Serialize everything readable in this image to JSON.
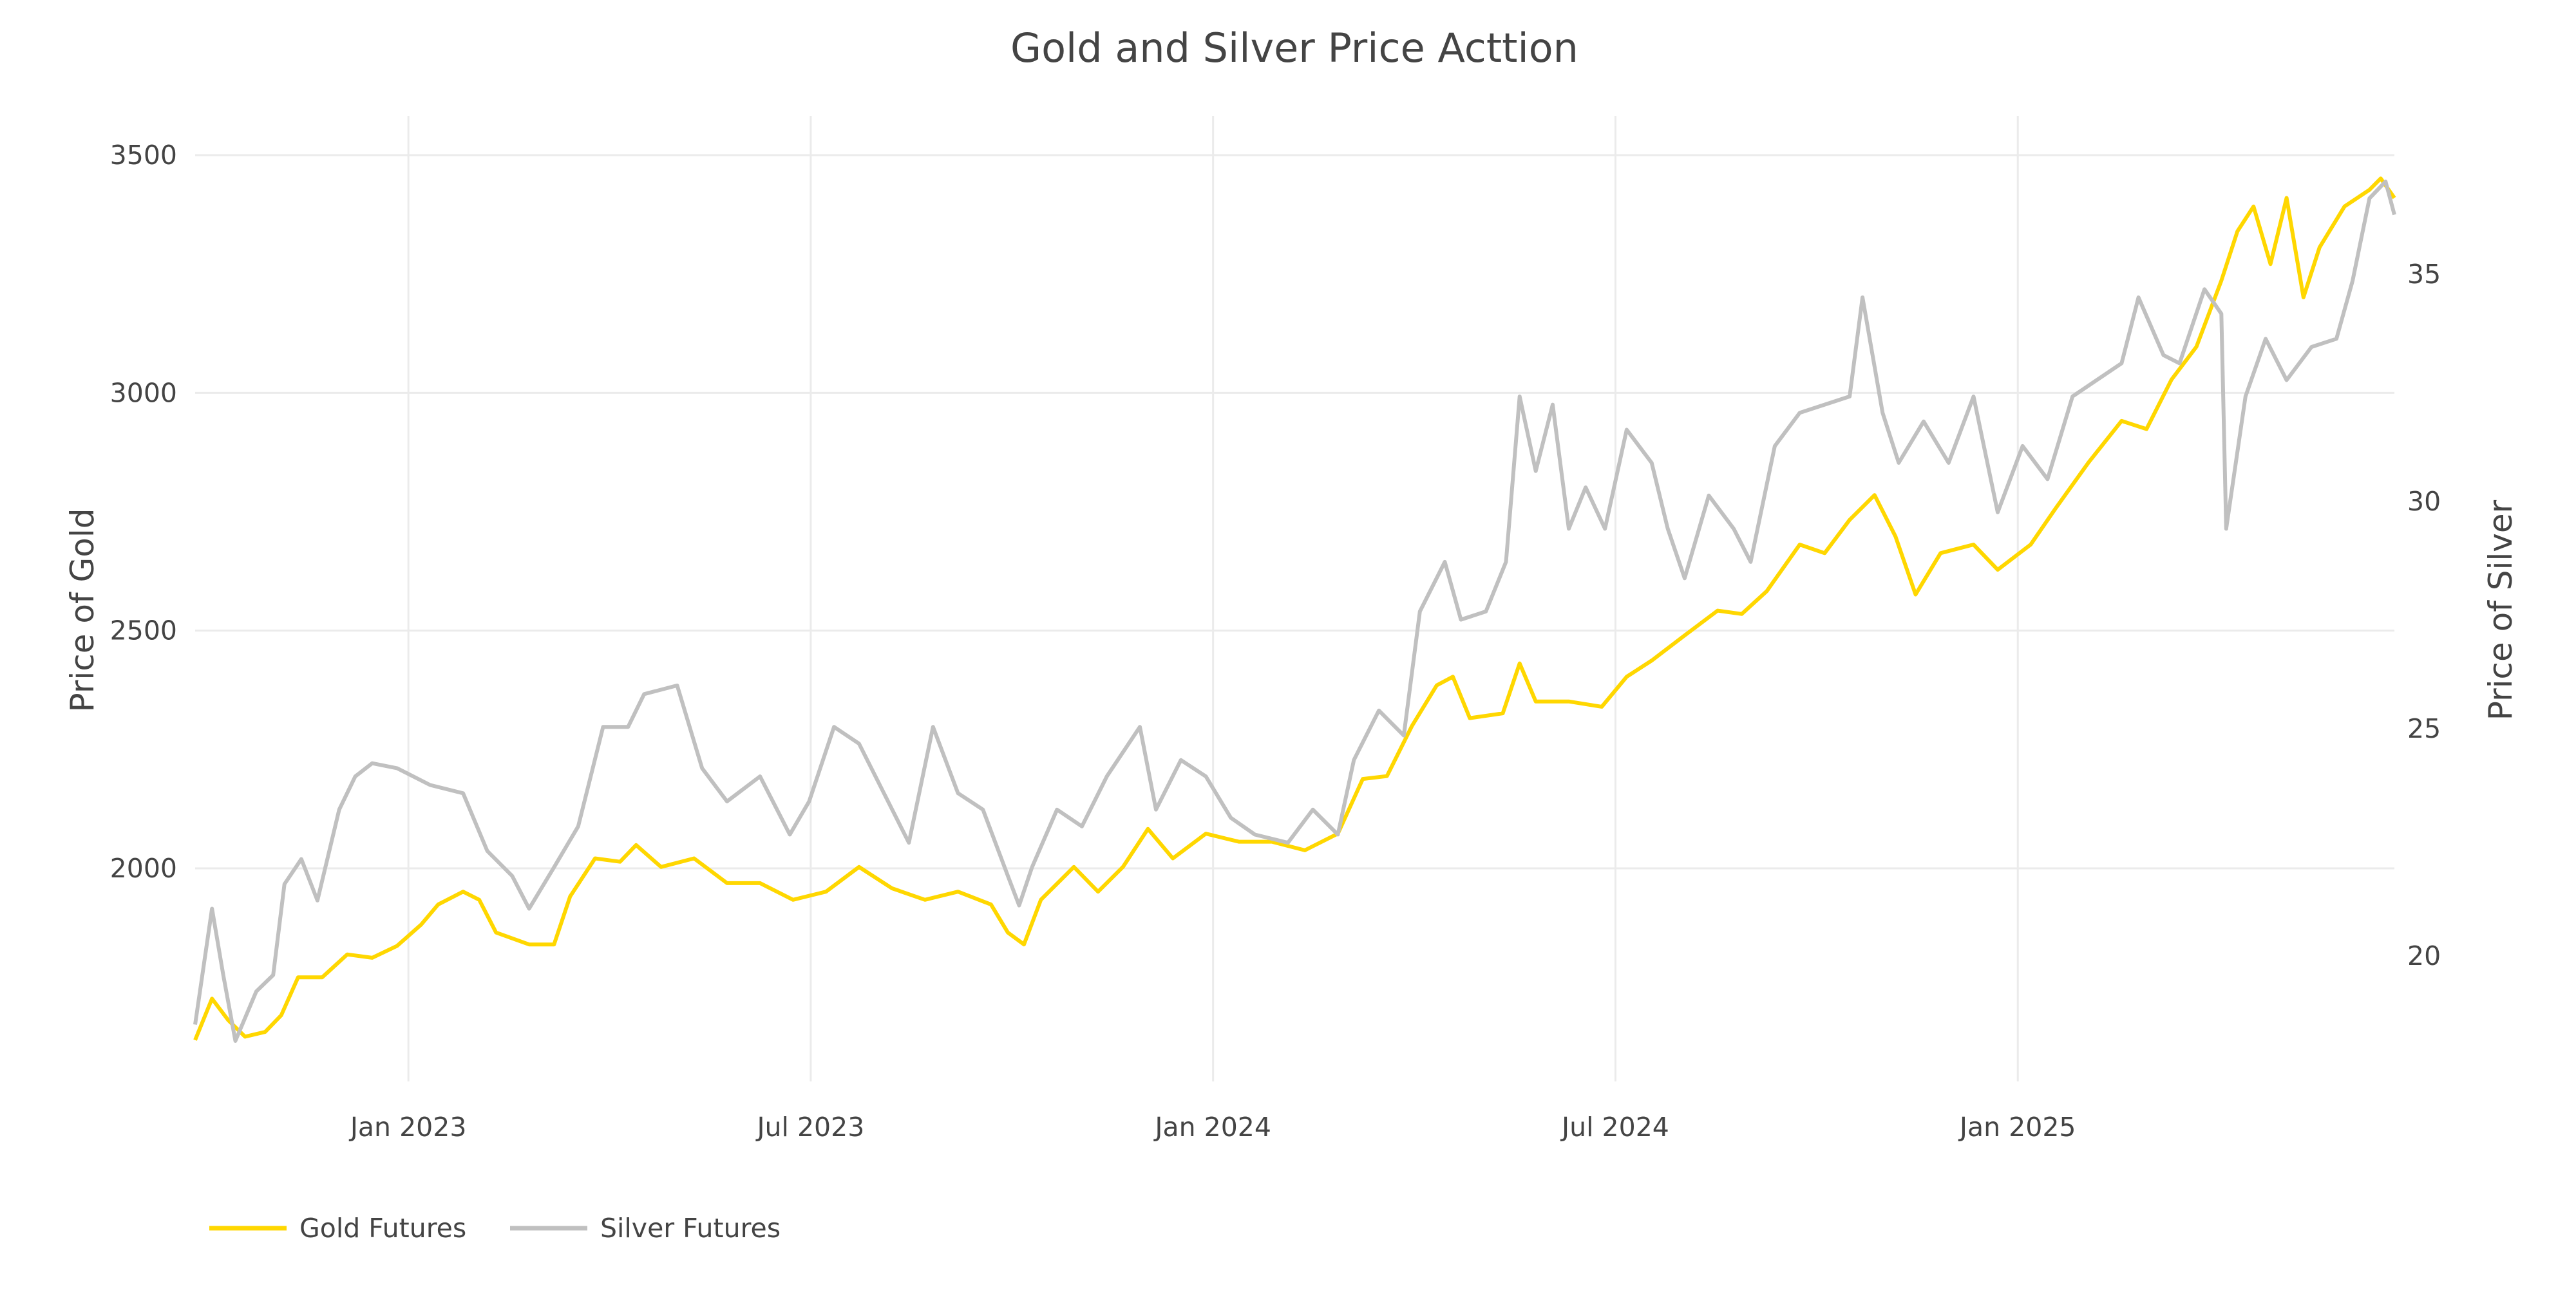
{
  "chart_data": {
    "type": "line",
    "title": "Gold and Silver Price Acttion",
    "x_unit": "decimal year",
    "xlim": [
      2022.735,
      2025.468
    ],
    "x_ticks": [
      {
        "value": 2023.0,
        "label": "Jan 2023"
      },
      {
        "value": 2023.5,
        "label": "Jul 2023"
      },
      {
        "value": 2024.0,
        "label": "Jan 2024"
      },
      {
        "value": 2024.5,
        "label": "Jul 2024"
      },
      {
        "value": 2025.0,
        "label": "Jan 2025"
      }
    ],
    "y_left": {
      "label": "Price of Gold",
      "ticks": [
        2000,
        2500,
        3000,
        3500
      ],
      "ylim": [
        1578,
        3503
      ]
    },
    "y_right": {
      "label": "Price of Silver",
      "ticks": [
        20,
        25,
        30,
        35
      ],
      "ylim": [
        17.3,
        37.6
      ]
    },
    "grid": true,
    "legend_placement": "bottom-left",
    "series": [
      {
        "name": "Gold Futures",
        "axis": "left",
        "color": "#FFD700",
        "x": [
          2022.735,
          2022.756,
          2022.776,
          2022.797,
          2022.822,
          2022.842,
          2022.863,
          2022.893,
          2022.924,
          2022.955,
          2022.986,
          2023.016,
          2023.037,
          2023.068,
          2023.088,
          2023.109,
          2023.15,
          2023.181,
          2023.201,
          2023.232,
          2023.263,
          2023.283,
          2023.314,
          2023.355,
          2023.396,
          2023.437,
          2023.478,
          2023.519,
          2023.56,
          2023.601,
          2023.642,
          2023.683,
          2023.724,
          2023.745,
          2023.765,
          2023.786,
          2023.827,
          2023.857,
          2023.888,
          2023.919,
          2023.95,
          2023.991,
          2024.032,
          2024.073,
          2024.114,
          2024.155,
          2024.186,
          2024.216,
          2024.247,
          2024.278,
          2024.298,
          2024.319,
          2024.36,
          2024.381,
          2024.401,
          2024.442,
          2024.483,
          2024.514,
          2024.545,
          2024.586,
          2024.627,
          2024.657,
          2024.688,
          2024.729,
          2024.76,
          2024.791,
          2024.822,
          2024.848,
          2024.873,
          2024.904,
          2024.945,
          2024.975,
          2025.016,
          2025.047,
          2025.088,
          2025.129,
          2025.16,
          2025.191,
          2025.222,
          2025.253,
          2025.273,
          2025.293,
          2025.314,
          2025.334,
          2025.355,
          2025.375,
          2025.406,
          2025.437,
          2025.451,
          2025.468
        ],
        "values": [
          1639,
          1726,
          1681,
          1646,
          1656,
          1691,
          1771,
          1771,
          1819,
          1812,
          1837,
          1882,
          1924,
          1951,
          1934,
          1865,
          1840,
          1840,
          1941,
          2021,
          2014,
          2049,
          2003,
          2021,
          1969,
          1969,
          1934,
          1951,
          2003,
          1958,
          1934,
          1951,
          1924,
          1865,
          1840,
          1934,
          2003,
          1951,
          2003,
          2083,
          2021,
          2073,
          2056,
          2056,
          2038,
          2073,
          2188,
          2194,
          2299,
          2385,
          2403,
          2316,
          2326,
          2431,
          2351,
          2351,
          2340,
          2403,
          2437,
          2490,
          2542,
          2535,
          2583,
          2681,
          2663,
          2733,
          2785,
          2698,
          2576,
          2663,
          2681,
          2628,
          2681,
          2757,
          2854,
          2941,
          2924,
          3028,
          3097,
          3236,
          3340,
          3392,
          3271,
          3410,
          3201,
          3306,
          3392,
          3427,
          3451,
          3410
        ]
      },
      {
        "name": "Silver Futures",
        "axis": "right",
        "color": "#C0C0C0",
        "x": [
          2022.735,
          2022.756,
          2022.77,
          2022.785,
          2022.811,
          2022.832,
          2022.846,
          2022.867,
          2022.887,
          2022.914,
          2022.934,
          2022.955,
          2022.986,
          2023.027,
          2023.068,
          2023.098,
          2023.129,
          2023.15,
          2023.181,
          2023.211,
          2023.242,
          2023.273,
          2023.293,
          2023.334,
          2023.365,
          2023.396,
          2023.437,
          2023.474,
          2023.498,
          2023.529,
          2023.56,
          2023.591,
          2023.622,
          2023.652,
          2023.683,
          2023.714,
          2023.745,
          2023.759,
          2023.775,
          2023.806,
          2023.837,
          2023.868,
          2023.909,
          2023.929,
          2023.96,
          2023.991,
          2024.022,
          2024.052,
          2024.093,
          2024.124,
          2024.155,
          2024.175,
          2024.206,
          2024.237,
          2024.257,
          2024.288,
          2024.308,
          2024.339,
          2024.364,
          2024.381,
          2024.401,
          2024.422,
          2024.442,
          2024.463,
          2024.487,
          2024.514,
          2024.545,
          2024.565,
          2024.586,
          2024.616,
          2024.647,
          2024.668,
          2024.698,
          2024.729,
          2024.76,
          2024.791,
          2024.807,
          2024.832,
          2024.852,
          2024.883,
          2024.914,
          2024.945,
          2024.975,
          2025.006,
          2025.037,
          2025.068,
          2025.098,
          2025.129,
          2025.15,
          2025.181,
          2025.201,
          2025.232,
          2025.253,
          2025.259,
          2025.283,
          2025.308,
          2025.334,
          2025.365,
          2025.396,
          2025.416,
          2025.437,
          2025.457,
          2025.468
        ],
        "values": [
          18.49,
          21.04,
          19.58,
          18.13,
          19.22,
          19.58,
          21.58,
          22.13,
          21.22,
          23.22,
          23.95,
          24.24,
          24.13,
          23.76,
          23.58,
          22.31,
          21.76,
          21.04,
          21.95,
          22.85,
          25.04,
          25.04,
          25.76,
          25.95,
          24.13,
          23.4,
          23.95,
          22.67,
          23.4,
          25.04,
          24.67,
          23.58,
          22.49,
          25.04,
          23.58,
          23.22,
          21.76,
          21.11,
          21.95,
          23.22,
          22.85,
          23.95,
          25.04,
          23.22,
          24.31,
          23.95,
          23.04,
          22.67,
          22.49,
          23.22,
          22.67,
          24.31,
          25.4,
          24.85,
          27.58,
          28.67,
          27.4,
          27.58,
          28.67,
          32.31,
          30.67,
          32.13,
          29.4,
          30.31,
          29.4,
          31.58,
          30.85,
          29.4,
          28.31,
          30.13,
          29.4,
          28.67,
          31.22,
          31.95,
          32.13,
          32.31,
          34.49,
          31.95,
          30.85,
          31.76,
          30.85,
          32.31,
          29.76,
          31.22,
          30.49,
          32.31,
          32.67,
          33.04,
          34.49,
          33.22,
          33.04,
          34.67,
          34.13,
          29.4,
          32.31,
          33.58,
          32.67,
          33.4,
          33.58,
          34.85,
          36.67,
          37.04,
          36.31
        ]
      }
    ]
  }
}
